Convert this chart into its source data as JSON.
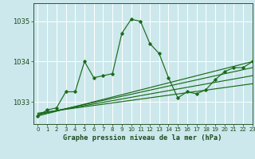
{
  "title": "Graphe pression niveau de la mer (hPa)",
  "bg_color": "#cce8ec",
  "grid_color": "#ffffff",
  "line_color": "#1a6b1a",
  "xlim": [
    -0.5,
    23
  ],
  "ylim": [
    1032.45,
    1035.45
  ],
  "yticks": [
    1033,
    1034,
    1035
  ],
  "xticks": [
    0,
    1,
    2,
    3,
    4,
    5,
    6,
    7,
    8,
    9,
    10,
    11,
    12,
    13,
    14,
    15,
    16,
    17,
    18,
    19,
    20,
    21,
    22,
    23
  ],
  "main_x": [
    0,
    1,
    2,
    3,
    4,
    5,
    6,
    7,
    8,
    9,
    10,
    11,
    12,
    13,
    14,
    15,
    16,
    17,
    18,
    19,
    20,
    21,
    22,
    23
  ],
  "main_y": [
    1032.65,
    1032.8,
    1032.85,
    1033.25,
    1033.25,
    1034.0,
    1033.6,
    1033.65,
    1033.7,
    1034.7,
    1035.05,
    1035.0,
    1034.45,
    1034.2,
    1033.6,
    1033.1,
    1033.25,
    1033.2,
    1033.3,
    1033.55,
    1033.75,
    1033.85,
    1033.85,
    1034.0
  ],
  "trend1_x": [
    0,
    23
  ],
  "trend1_y": [
    1032.65,
    1034.0
  ],
  "trend2_x": [
    0,
    23
  ],
  "trend2_y": [
    1032.68,
    1033.85
  ],
  "trend3_x": [
    0,
    23
  ],
  "trend3_y": [
    1032.7,
    1033.65
  ],
  "trend4_x": [
    0,
    23
  ],
  "trend4_y": [
    1032.72,
    1033.45
  ]
}
